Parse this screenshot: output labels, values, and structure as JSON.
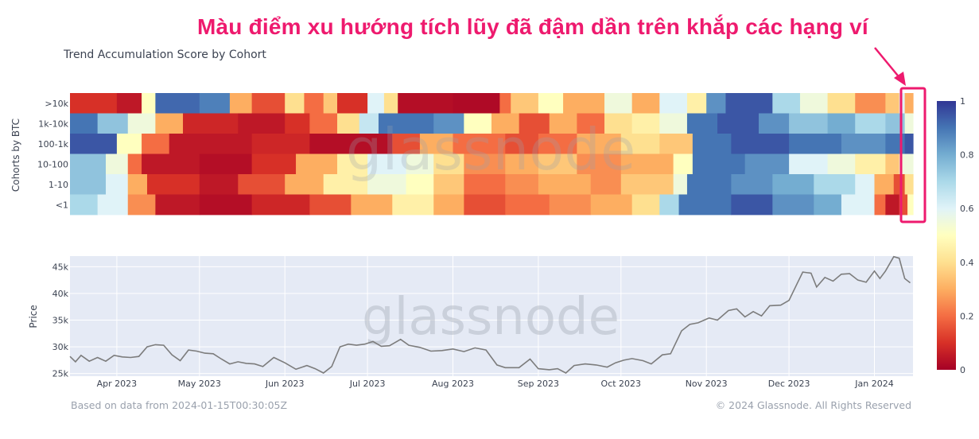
{
  "annotation": "Màu điểm xu hướng tích lũy đã đậm dần trên khắp các hạng ví",
  "title": "Trend Accumulation Score by Cohort",
  "footer_left": "Based on data from 2024-01-15T00:30:05Z",
  "footer_right": "© 2024 Glassnode. All Rights Reserved",
  "watermark": "glassnode",
  "colors": {
    "annotation": "#ee1a6e",
    "price_line": "#7c7c7c",
    "plot_bg": "#e5eaf5"
  },
  "chart_data": [
    {
      "type": "heatmap",
      "title": "Trend Accumulation Score by Cohort",
      "ylabel": "Cohorts by BTC",
      "rows": [
        ">10k",
        "1k-10k",
        "100-1k",
        "10-100",
        "1-10",
        "<1"
      ],
      "x_start": "2023-03-15",
      "x_end": "2024-01-15",
      "colorscale": {
        "range": [
          0,
          1
        ],
        "ticks": [
          "0",
          "0.2",
          "0.4",
          "0.6",
          "0.8",
          "1"
        ]
      },
      "segments": {
        ">10k": [
          [
            "2023-03-15",
            0.1
          ],
          [
            "2023-04-01",
            0.05
          ],
          [
            "2023-04-10",
            0.5
          ],
          [
            "2023-04-15",
            0.92
          ],
          [
            "2023-05-01",
            0.88
          ],
          [
            "2023-05-12",
            0.3
          ],
          [
            "2023-05-20",
            0.15
          ],
          [
            "2023-06-01",
            0.4
          ],
          [
            "2023-06-08",
            0.2
          ],
          [
            "2023-06-15",
            0.35
          ],
          [
            "2023-06-20",
            0.1
          ],
          [
            "2023-07-01",
            0.6
          ],
          [
            "2023-07-07",
            0.4
          ],
          [
            "2023-07-12",
            0.03
          ],
          [
            "2023-08-01",
            0.02
          ],
          [
            "2023-08-18",
            0.2
          ],
          [
            "2023-08-22",
            0.35
          ],
          [
            "2023-09-01",
            0.5
          ],
          [
            "2023-09-10",
            0.3
          ],
          [
            "2023-09-25",
            0.55
          ],
          [
            "2023-10-05",
            0.3
          ],
          [
            "2023-10-15",
            0.6
          ],
          [
            "2023-10-25",
            0.45
          ],
          [
            "2023-11-01",
            0.85
          ],
          [
            "2023-11-08",
            0.95
          ],
          [
            "2023-11-25",
            0.7
          ],
          [
            "2023-12-05",
            0.55
          ],
          [
            "2023-12-15",
            0.4
          ],
          [
            "2023-12-25",
            0.25
          ],
          [
            "2024-01-05",
            0.35
          ],
          [
            "2024-01-10",
            0.6
          ],
          [
            "2024-01-12",
            0.3
          ]
        ],
        "1k-10k": [
          [
            "2023-03-15",
            0.9
          ],
          [
            "2023-03-25",
            0.75
          ],
          [
            "2023-04-05",
            0.55
          ],
          [
            "2023-04-15",
            0.3
          ],
          [
            "2023-04-25",
            0.08
          ],
          [
            "2023-05-15",
            0.05
          ],
          [
            "2023-06-01",
            0.1
          ],
          [
            "2023-06-10",
            0.2
          ],
          [
            "2023-06-20",
            0.4
          ],
          [
            "2023-06-28",
            0.65
          ],
          [
            "2023-07-05",
            0.9
          ],
          [
            "2023-07-25",
            0.85
          ],
          [
            "2023-08-05",
            0.5
          ],
          [
            "2023-08-15",
            0.3
          ],
          [
            "2023-08-25",
            0.15
          ],
          [
            "2023-09-05",
            0.3
          ],
          [
            "2023-09-15",
            0.2
          ],
          [
            "2023-09-25",
            0.4
          ],
          [
            "2023-10-05",
            0.45
          ],
          [
            "2023-10-15",
            0.55
          ],
          [
            "2023-10-25",
            0.9
          ],
          [
            "2023-11-05",
            0.95
          ],
          [
            "2023-11-20",
            0.85
          ],
          [
            "2023-12-01",
            0.75
          ],
          [
            "2023-12-15",
            0.8
          ],
          [
            "2023-12-25",
            0.7
          ],
          [
            "2024-01-05",
            0.75
          ],
          [
            "2024-01-12",
            0.55
          ]
        ],
        "100-1k": [
          [
            "2023-03-15",
            0.95
          ],
          [
            "2023-04-01",
            0.5
          ],
          [
            "2023-04-10",
            0.2
          ],
          [
            "2023-04-20",
            0.05
          ],
          [
            "2023-05-20",
            0.08
          ],
          [
            "2023-06-10",
            0.03
          ],
          [
            "2023-07-10",
            0.15
          ],
          [
            "2023-07-20",
            0.3
          ],
          [
            "2023-08-01",
            0.2
          ],
          [
            "2023-08-20",
            0.15
          ],
          [
            "2023-09-01",
            0.2
          ],
          [
            "2023-09-15",
            0.3
          ],
          [
            "2023-10-01",
            0.4
          ],
          [
            "2023-10-15",
            0.35
          ],
          [
            "2023-10-27",
            0.9
          ],
          [
            "2023-11-10",
            0.95
          ],
          [
            "2023-12-01",
            0.9
          ],
          [
            "2023-12-20",
            0.85
          ],
          [
            "2024-01-05",
            0.9
          ],
          [
            "2024-01-12",
            0.95
          ]
        ],
        "10-100": [
          [
            "2023-03-15",
            0.75
          ],
          [
            "2023-03-28",
            0.55
          ],
          [
            "2023-04-05",
            0.2
          ],
          [
            "2023-04-10",
            0.05
          ],
          [
            "2023-05-01",
            0.03
          ],
          [
            "2023-05-20",
            0.1
          ],
          [
            "2023-06-05",
            0.3
          ],
          [
            "2023-06-20",
            0.45
          ],
          [
            "2023-07-01",
            0.6
          ],
          [
            "2023-07-15",
            0.55
          ],
          [
            "2023-07-25",
            0.4
          ],
          [
            "2023-08-05",
            0.25
          ],
          [
            "2023-08-20",
            0.3
          ],
          [
            "2023-09-01",
            0.35
          ],
          [
            "2023-09-15",
            0.25
          ],
          [
            "2023-10-01",
            0.3
          ],
          [
            "2023-10-20",
            0.5
          ],
          [
            "2023-10-27",
            0.9
          ],
          [
            "2023-11-15",
            0.85
          ],
          [
            "2023-12-01",
            0.6
          ],
          [
            "2023-12-15",
            0.55
          ],
          [
            "2023-12-25",
            0.45
          ],
          [
            "2024-01-05",
            0.35
          ],
          [
            "2024-01-10",
            0.55
          ]
        ],
        "1-10": [
          [
            "2023-03-15",
            0.75
          ],
          [
            "2023-03-28",
            0.6
          ],
          [
            "2023-04-05",
            0.3
          ],
          [
            "2023-04-12",
            0.1
          ],
          [
            "2023-05-01",
            0.05
          ],
          [
            "2023-05-15",
            0.15
          ],
          [
            "2023-06-01",
            0.3
          ],
          [
            "2023-06-15",
            0.45
          ],
          [
            "2023-07-01",
            0.55
          ],
          [
            "2023-07-15",
            0.5
          ],
          [
            "2023-07-25",
            0.35
          ],
          [
            "2023-08-05",
            0.2
          ],
          [
            "2023-08-20",
            0.25
          ],
          [
            "2023-09-01",
            0.3
          ],
          [
            "2023-09-20",
            0.25
          ],
          [
            "2023-10-01",
            0.35
          ],
          [
            "2023-10-20",
            0.55
          ],
          [
            "2023-10-25",
            0.9
          ],
          [
            "2023-11-10",
            0.85
          ],
          [
            "2023-11-25",
            0.8
          ],
          [
            "2023-12-10",
            0.7
          ],
          [
            "2023-12-25",
            0.6
          ],
          [
            "2024-01-01",
            0.3
          ],
          [
            "2024-01-08",
            0.15
          ],
          [
            "2024-01-12",
            0.4
          ]
        ],
        "<1": [
          [
            "2023-03-15",
            0.7
          ],
          [
            "2023-03-25",
            0.6
          ],
          [
            "2023-04-05",
            0.25
          ],
          [
            "2023-04-15",
            0.05
          ],
          [
            "2023-05-01",
            0.03
          ],
          [
            "2023-05-20",
            0.08
          ],
          [
            "2023-06-10",
            0.15
          ],
          [
            "2023-06-25",
            0.3
          ],
          [
            "2023-07-10",
            0.45
          ],
          [
            "2023-07-25",
            0.3
          ],
          [
            "2023-08-05",
            0.15
          ],
          [
            "2023-08-20",
            0.2
          ],
          [
            "2023-09-05",
            0.25
          ],
          [
            "2023-09-20",
            0.3
          ],
          [
            "2023-10-05",
            0.4
          ],
          [
            "2023-10-15",
            0.7
          ],
          [
            "2023-10-22",
            0.9
          ],
          [
            "2023-11-10",
            0.95
          ],
          [
            "2023-11-25",
            0.85
          ],
          [
            "2023-12-10",
            0.8
          ],
          [
            "2023-12-20",
            0.6
          ],
          [
            "2024-01-01",
            0.2
          ],
          [
            "2024-01-05",
            0.05
          ],
          [
            "2024-01-10",
            0.15
          ],
          [
            "2024-01-13",
            0.5
          ]
        ]
      }
    },
    {
      "type": "line",
      "ylabel": "Price",
      "ylim": [
        24500,
        47000
      ],
      "y_ticks": [
        25000,
        30000,
        35000,
        40000,
        45000
      ],
      "y_tick_labels": [
        "25k",
        "30k",
        "35k",
        "40k",
        "45k"
      ],
      "x_tick_dates": [
        "2023-04-01",
        "2023-05-01",
        "2023-06-01",
        "2023-07-01",
        "2023-08-01",
        "2023-09-01",
        "2023-10-01",
        "2023-11-01",
        "2023-12-01",
        "2024-01-01"
      ],
      "x_tick_labels": [
        "Apr 2023",
        "May 2023",
        "Jun 2023",
        "Jul 2023",
        "Aug 2023",
        "Sep 2023",
        "Oct 2023",
        "Nov 2023",
        "Dec 2023",
        "Jan 2024"
      ],
      "series": [
        {
          "points": [
            [
              "2023-03-15",
              28200
            ],
            [
              "2023-03-17",
              27200
            ],
            [
              "2023-03-19",
              28400
            ],
            [
              "2023-03-22",
              27300
            ],
            [
              "2023-03-25",
              28000
            ],
            [
              "2023-03-28",
              27300
            ],
            [
              "2023-03-31",
              28400
            ],
            [
              "2023-04-03",
              28100
            ],
            [
              "2023-04-06",
              28000
            ],
            [
              "2023-04-09",
              28200
            ],
            [
              "2023-04-12",
              30000
            ],
            [
              "2023-04-15",
              30400
            ],
            [
              "2023-04-18",
              30300
            ],
            [
              "2023-04-21",
              28500
            ],
            [
              "2023-04-24",
              27400
            ],
            [
              "2023-04-27",
              29400
            ],
            [
              "2023-04-30",
              29200
            ],
            [
              "2023-05-03",
              28800
            ],
            [
              "2023-05-06",
              28700
            ],
            [
              "2023-05-09",
              27700
            ],
            [
              "2023-05-12",
              26800
            ],
            [
              "2023-05-15",
              27200
            ],
            [
              "2023-05-18",
              26900
            ],
            [
              "2023-05-21",
              26800
            ],
            [
              "2023-05-24",
              26300
            ],
            [
              "2023-05-28",
              28000
            ],
            [
              "2023-06-01",
              27000
            ],
            [
              "2023-06-05",
              25800
            ],
            [
              "2023-06-09",
              26500
            ],
            [
              "2023-06-12",
              25900
            ],
            [
              "2023-06-15",
              25100
            ],
            [
              "2023-06-18",
              26300
            ],
            [
              "2023-06-21",
              30000
            ],
            [
              "2023-06-24",
              30500
            ],
            [
              "2023-06-27",
              30300
            ],
            [
              "2023-06-30",
              30500
            ],
            [
              "2023-07-03",
              31000
            ],
            [
              "2023-07-06",
              30100
            ],
            [
              "2023-07-09",
              30200
            ],
            [
              "2023-07-13",
              31400
            ],
            [
              "2023-07-16",
              30300
            ],
            [
              "2023-07-20",
              29900
            ],
            [
              "2023-07-24",
              29200
            ],
            [
              "2023-07-28",
              29300
            ],
            [
              "2023-08-01",
              29600
            ],
            [
              "2023-08-05",
              29100
            ],
            [
              "2023-08-09",
              29800
            ],
            [
              "2023-08-13",
              29400
            ],
            [
              "2023-08-17",
              26600
            ],
            [
              "2023-08-20",
              26100
            ],
            [
              "2023-08-25",
              26100
            ],
            [
              "2023-08-29",
              27700
            ],
            [
              "2023-09-01",
              25900
            ],
            [
              "2023-09-05",
              25700
            ],
            [
              "2023-09-08",
              25900
            ],
            [
              "2023-09-11",
              25100
            ],
            [
              "2023-09-14",
              26500
            ],
            [
              "2023-09-18",
              26800
            ],
            [
              "2023-09-22",
              26600
            ],
            [
              "2023-09-26",
              26200
            ],
            [
              "2023-09-29",
              27000
            ],
            [
              "2023-10-02",
              27500
            ],
            [
              "2023-10-05",
              27800
            ],
            [
              "2023-10-09",
              27400
            ],
            [
              "2023-10-12",
              26800
            ],
            [
              "2023-10-16",
              28500
            ],
            [
              "2023-10-19",
              28700
            ],
            [
              "2023-10-23",
              33000
            ],
            [
              "2023-10-26",
              34200
            ],
            [
              "2023-10-29",
              34500
            ],
            [
              "2023-11-02",
              35400
            ],
            [
              "2023-11-05",
              35000
            ],
            [
              "2023-11-09",
              36800
            ],
            [
              "2023-11-12",
              37100
            ],
            [
              "2023-11-15",
              35600
            ],
            [
              "2023-11-18",
              36600
            ],
            [
              "2023-11-21",
              35800
            ],
            [
              "2023-11-24",
              37700
            ],
            [
              "2023-11-28",
              37800
            ],
            [
              "2023-12-01",
              38700
            ],
            [
              "2023-12-04",
              41900
            ],
            [
              "2023-12-06",
              44000
            ],
            [
              "2023-12-09",
              43800
            ],
            [
              "2023-12-11",
              41200
            ],
            [
              "2023-12-14",
              43000
            ],
            [
              "2023-12-17",
              42300
            ],
            [
              "2023-12-20",
              43600
            ],
            [
              "2023-12-23",
              43700
            ],
            [
              "2023-12-26",
              42500
            ],
            [
              "2023-12-29",
              42100
            ],
            [
              "2024-01-01",
              44200
            ],
            [
              "2024-01-03",
              42800
            ],
            [
              "2024-01-05",
              44200
            ],
            [
              "2024-01-08",
              46900
            ],
            [
              "2024-01-10",
              46600
            ],
            [
              "2024-01-12",
              42800
            ],
            [
              "2024-01-14",
              42000
            ]
          ]
        }
      ]
    }
  ]
}
